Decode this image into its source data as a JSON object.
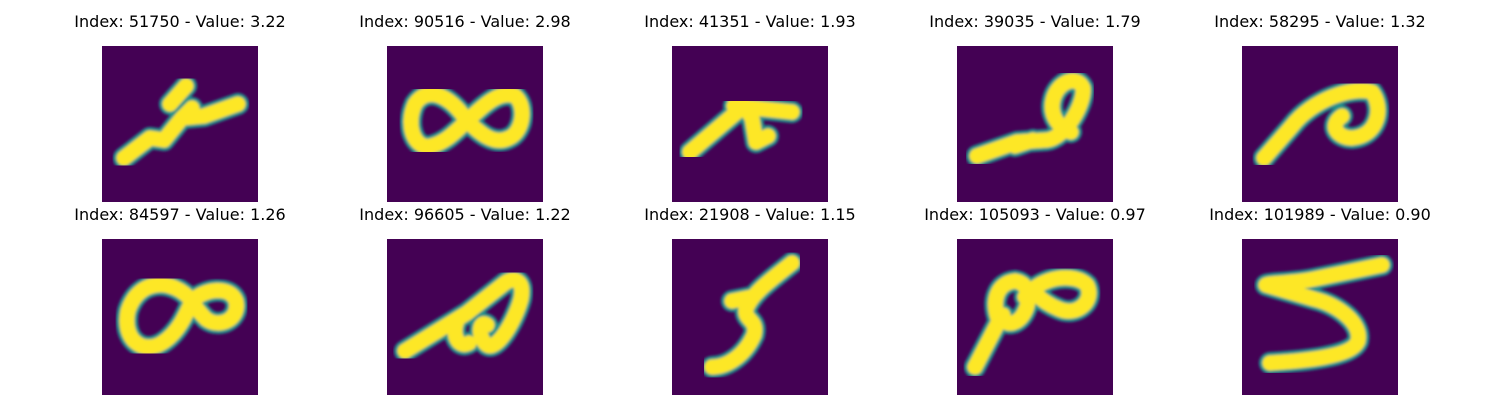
{
  "colors": {
    "background": "#440154",
    "stroke": "#fde725",
    "edge": "#21918c"
  },
  "panels": [
    {
      "index": "51750",
      "value": "3.22",
      "title": "Index: 51750 - Value: 3.22",
      "icon": "digit-image"
    },
    {
      "index": "90516",
      "value": "2.98",
      "title": "Index: 90516 - Value: 2.98",
      "icon": "digit-image"
    },
    {
      "index": "41351",
      "value": "1.93",
      "title": "Index: 41351 - Value: 1.93",
      "icon": "digit-image"
    },
    {
      "index": "39035",
      "value": "1.79",
      "title": "Index: 39035 - Value: 1.79",
      "icon": "digit-image"
    },
    {
      "index": "58295",
      "value": "1.32",
      "title": "Index: 58295 - Value: 1.32",
      "icon": "digit-image"
    },
    {
      "index": "84597",
      "value": "1.26",
      "title": "Index: 84597 - Value: 1.26",
      "icon": "digit-image"
    },
    {
      "index": "96605",
      "value": "1.22",
      "title": "Index: 96605 - Value: 1.22",
      "icon": "digit-image"
    },
    {
      "index": "21908",
      "value": "1.15",
      "title": "Index: 21908 - Value: 1.15",
      "icon": "digit-image"
    },
    {
      "index": "105093",
      "value": "0.97",
      "title": "Index: 105093 - Value: 0.97",
      "icon": "digit-image"
    },
    {
      "index": "101989",
      "value": "0.90",
      "title": "Index: 101989 - Value: 0.90",
      "icon": "digit-image"
    }
  ]
}
